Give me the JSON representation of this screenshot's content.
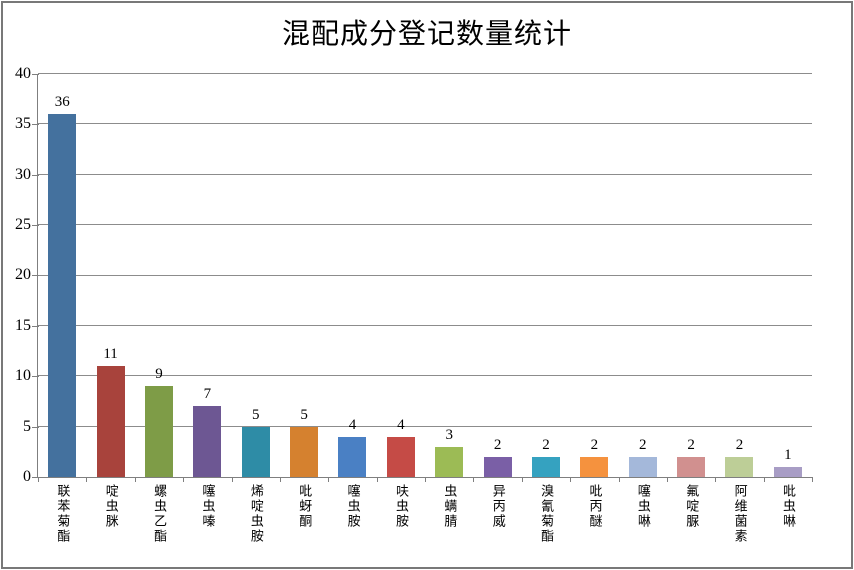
{
  "chart_data": {
    "type": "bar",
    "title": "混配成分登记数量统计",
    "categories": [
      "联苯菊酯",
      "啶虫脒",
      "螺虫乙酯",
      "噻虫嗪",
      "烯啶虫胺",
      "吡蚜酮",
      "噻虫胺",
      "呋虫胺",
      "虫螨腈",
      "异丙威",
      "溴氰菊酯",
      "吡丙醚",
      "噻虫啉",
      "氟啶脲",
      "阿维菌素",
      "吡虫啉"
    ],
    "values": [
      36,
      11,
      9,
      7,
      5,
      5,
      4,
      4,
      3,
      2,
      2,
      2,
      2,
      2,
      2,
      1
    ],
    "bar_colors": [
      "#44719E",
      "#A8433C",
      "#7E9C47",
      "#6D5793",
      "#2E8CA6",
      "#D5812F",
      "#4A80C4",
      "#C54B46",
      "#9CBB55",
      "#7A5FA6",
      "#35A2C0",
      "#F5923E",
      "#A4B8DA",
      "#D1908F",
      "#BDCE97",
      "#A89DC5"
    ],
    "xlabel": "",
    "ylabel": "",
    "ylim": [
      0,
      40
    ],
    "yticks": [
      0,
      5,
      10,
      15,
      20,
      25,
      30,
      35,
      40
    ],
    "grid": "horizontal gridlines on",
    "legend": "none",
    "data_labels": "above bars",
    "gridline_color": "#8C8C8C",
    "axis_color": "#7F7F7F",
    "frame_border_color": "#787878",
    "background_color": "#FFFFFF",
    "text_color": "#000000"
  }
}
